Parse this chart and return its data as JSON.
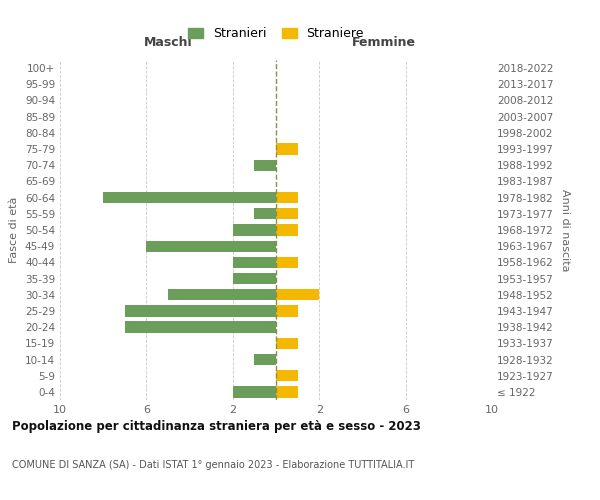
{
  "age_groups": [
    "100+",
    "95-99",
    "90-94",
    "85-89",
    "80-84",
    "75-79",
    "70-74",
    "65-69",
    "60-64",
    "55-59",
    "50-54",
    "45-49",
    "40-44",
    "35-39",
    "30-34",
    "25-29",
    "20-24",
    "15-19",
    "10-14",
    "5-9",
    "0-4"
  ],
  "birth_years": [
    "≤ 1922",
    "1923-1927",
    "1928-1932",
    "1933-1937",
    "1938-1942",
    "1943-1947",
    "1948-1952",
    "1953-1957",
    "1958-1962",
    "1963-1967",
    "1968-1972",
    "1973-1977",
    "1978-1982",
    "1983-1987",
    "1988-1992",
    "1993-1997",
    "1998-2002",
    "2003-2007",
    "2008-2012",
    "2013-2017",
    "2018-2022"
  ],
  "males": [
    0,
    0,
    0,
    0,
    0,
    0,
    1,
    0,
    8,
    1,
    2,
    6,
    2,
    2,
    5,
    7,
    7,
    0,
    1,
    0,
    2
  ],
  "females": [
    0,
    0,
    0,
    0,
    0,
    1,
    0,
    0,
    1,
    1,
    1,
    0,
    1,
    0,
    2,
    1,
    0,
    1,
    0,
    1,
    1
  ],
  "male_color": "#6a9e5a",
  "female_color": "#f5b800",
  "dashed_line_color": "#8b8b4e",
  "title": "Popolazione per cittadinanza straniera per età e sesso - 2023",
  "subtitle": "COMUNE DI SANZA (SA) - Dati ISTAT 1° gennaio 2023 - Elaborazione TUTTITALIA.IT",
  "xlabel_left": "Maschi",
  "xlabel_right": "Femmine",
  "ylabel_left": "Fasce di età",
  "ylabel_right": "Anni di nascita",
  "legend_male": "Stranieri",
  "legend_female": "Straniere",
  "xlim": 10,
  "background_color": "#ffffff",
  "grid_color": "#c8c8c8"
}
